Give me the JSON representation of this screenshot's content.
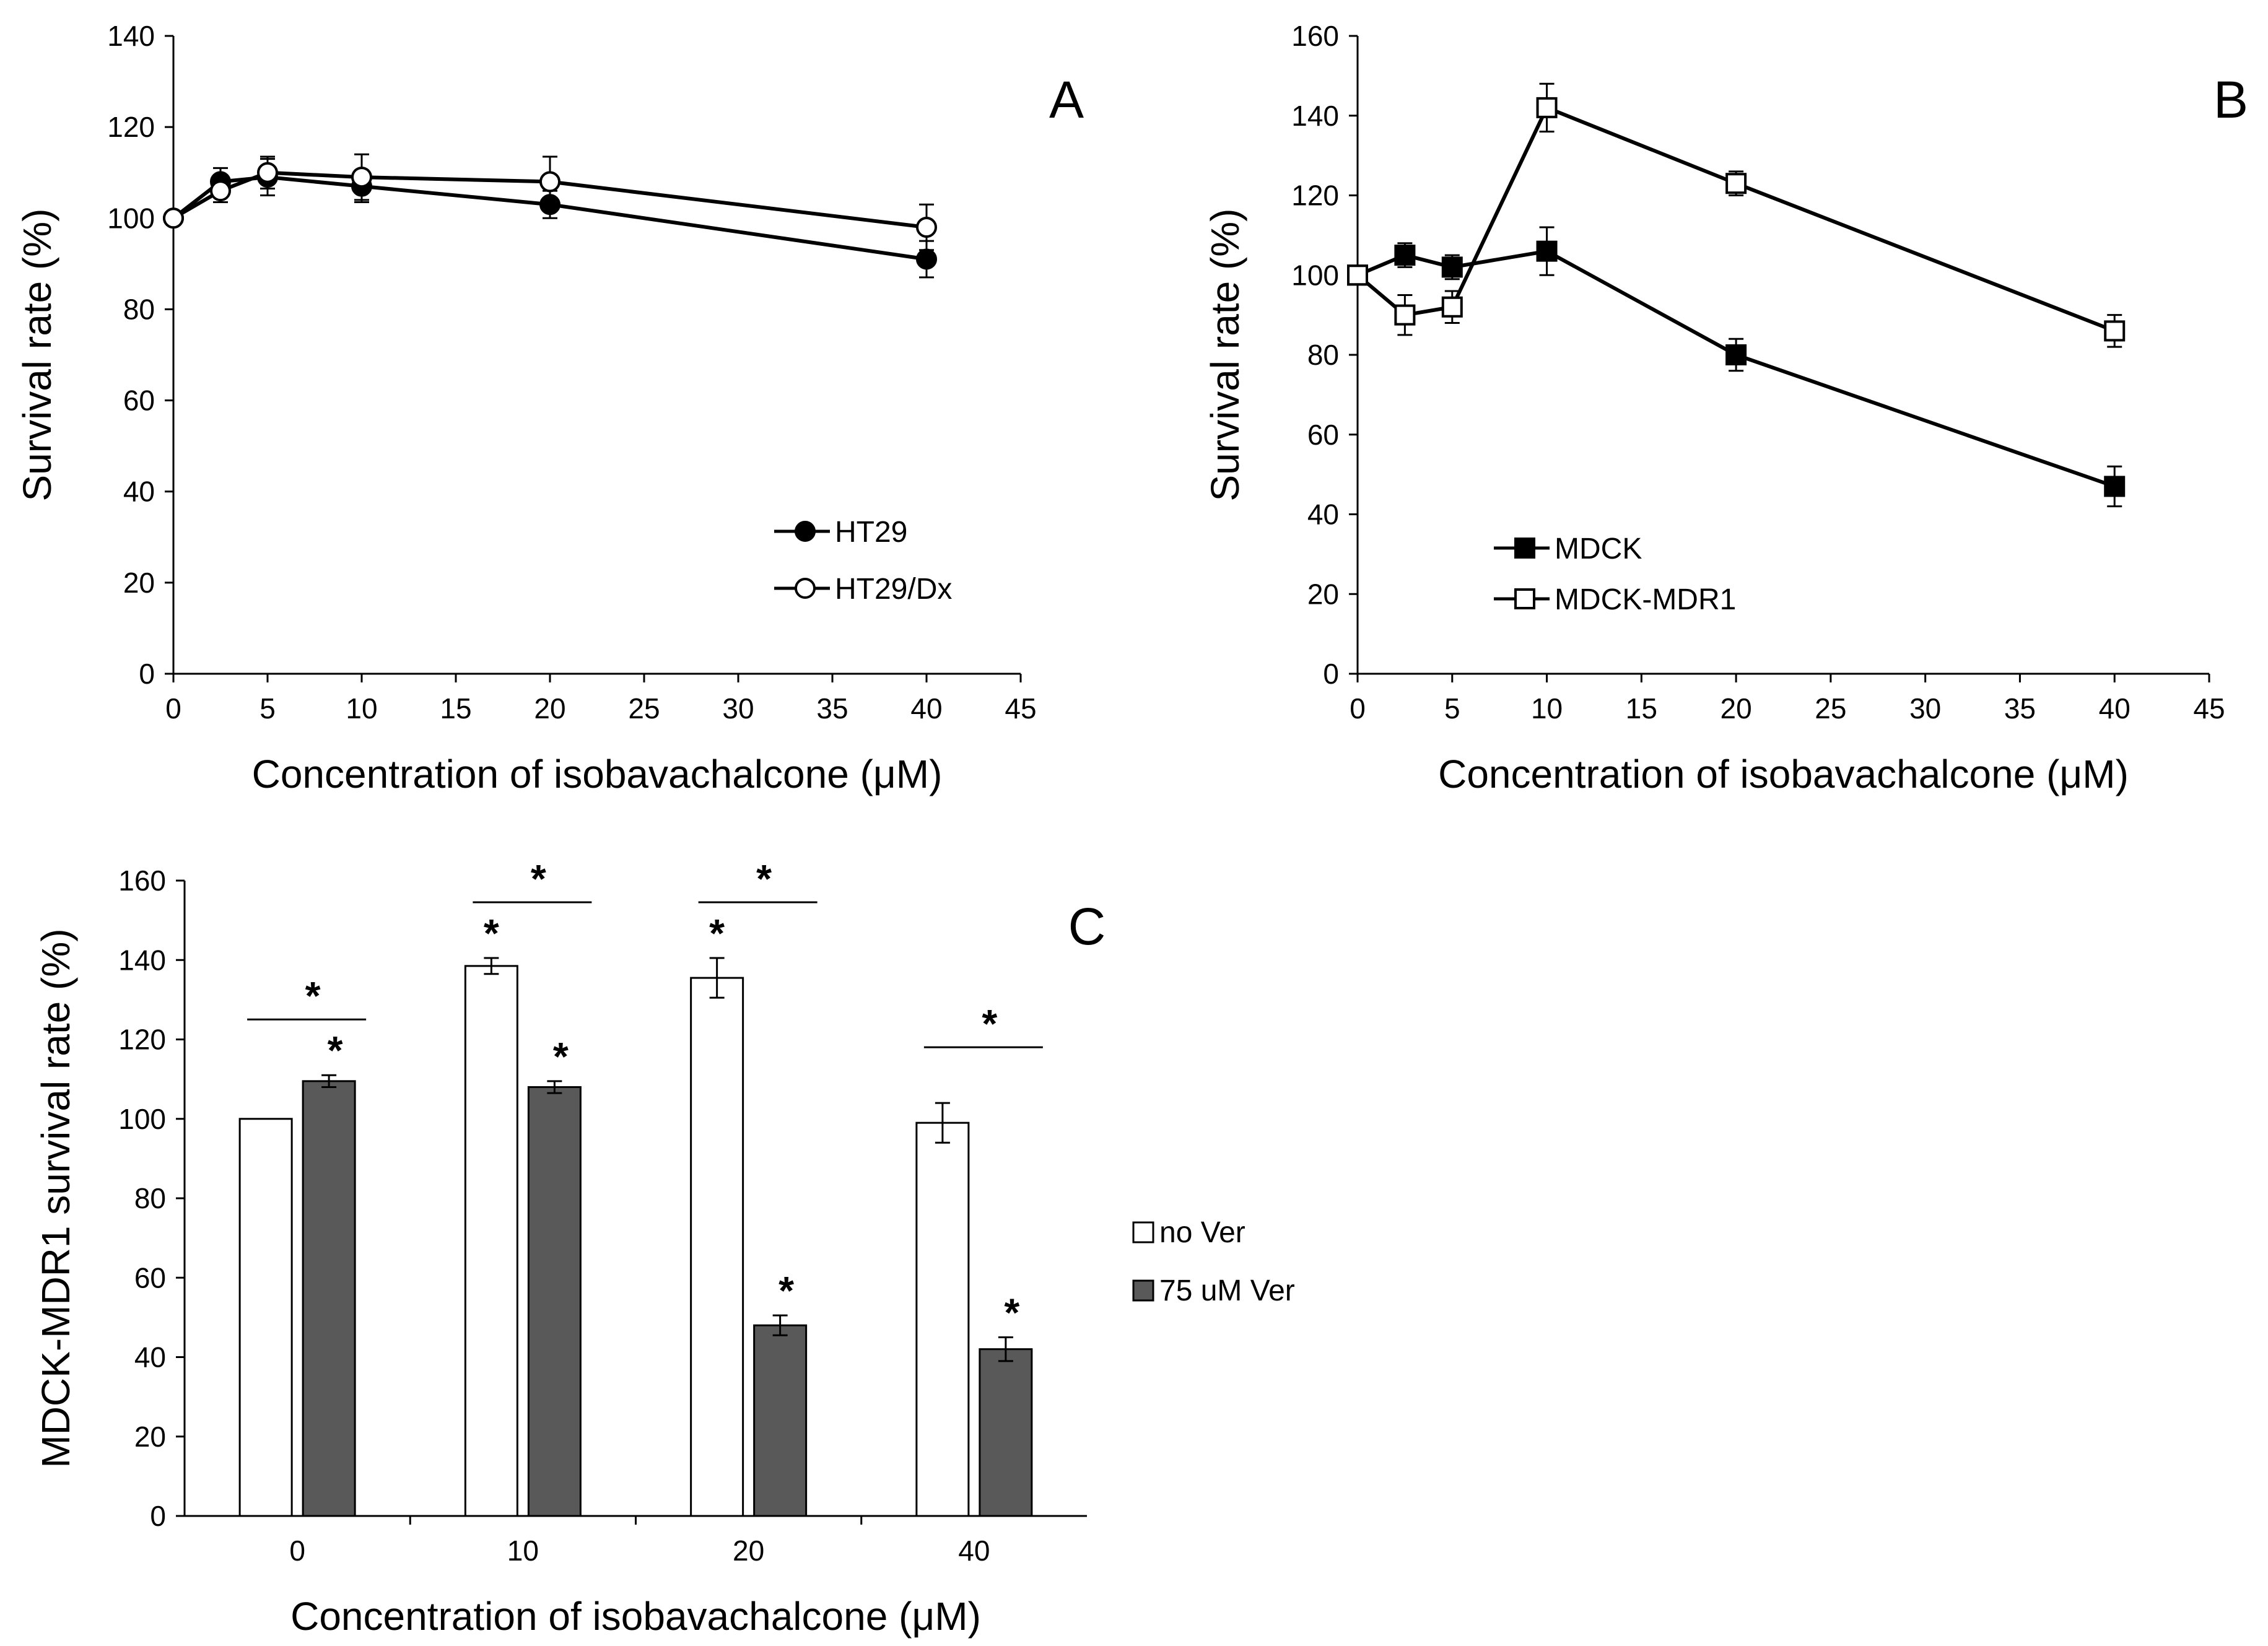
{
  "chart_data": [
    {
      "id": "A",
      "type": "line",
      "panel_label": "A",
      "xlabel": "Concentration of isobavachalcone (μM)",
      "ylabel": "Survival rate (%)",
      "xlim": [
        0,
        45
      ],
      "ylim": [
        0,
        140
      ],
      "xticks": [
        "0",
        "5",
        "10",
        "15",
        "20",
        "25",
        "30",
        "35",
        "40",
        "45"
      ],
      "yticks": [
        "0",
        "20",
        "40",
        "60",
        "80",
        "100",
        "120",
        "140"
      ],
      "legend_position": "lower-right",
      "series": [
        {
          "name": "HT29",
          "marker": "filled-circle",
          "x": [
            0,
            2.5,
            5,
            10,
            20,
            40
          ],
          "y": [
            100,
            108,
            109,
            107,
            103,
            91
          ],
          "err": [
            0,
            3,
            4,
            3.5,
            3,
            4
          ]
        },
        {
          "name": "HT29/Dx",
          "marker": "open-circle",
          "x": [
            0,
            2.5,
            5,
            10,
            20,
            40
          ],
          "y": [
            100,
            106,
            110,
            109,
            108,
            98
          ],
          "err": [
            0,
            2.5,
            3.5,
            5,
            5.5,
            5
          ]
        }
      ]
    },
    {
      "id": "B",
      "type": "line",
      "panel_label": "B",
      "xlabel": "Concentration of isobavachalcone (μM)",
      "ylabel": "Survival rate (%)",
      "xlim": [
        0,
        45
      ],
      "ylim": [
        0,
        160
      ],
      "xticks": [
        "0",
        "5",
        "10",
        "15",
        "20",
        "25",
        "30",
        "35",
        "40",
        "45"
      ],
      "yticks": [
        "0",
        "20",
        "40",
        "60",
        "80",
        "100",
        "120",
        "140",
        "160"
      ],
      "legend_position": "lower-left",
      "series": [
        {
          "name": "MDCK",
          "marker": "filled-square",
          "x": [
            0,
            2.5,
            5,
            10,
            20,
            40
          ],
          "y": [
            100,
            105,
            102,
            106,
            80,
            47
          ],
          "err": [
            0,
            3,
            3,
            6,
            4,
            5
          ]
        },
        {
          "name": "MDCK-MDR1",
          "marker": "open-square",
          "x": [
            0,
            2.5,
            5,
            10,
            20,
            40
          ],
          "y": [
            100,
            90,
            92,
            142,
            123,
            86
          ],
          "err": [
            0,
            5,
            4,
            6,
            3,
            4
          ]
        }
      ]
    },
    {
      "id": "C",
      "type": "bar",
      "panel_label": "C",
      "xlabel": "Concentration of isobavachalcone (μM)",
      "ylabel": "MDCK-MDR1  survival rate (%)",
      "ylim": [
        0,
        160
      ],
      "yticks": [
        "0",
        "20",
        "40",
        "60",
        "80",
        "100",
        "120",
        "140",
        "160"
      ],
      "categories": [
        "0",
        "10",
        "20",
        "40"
      ],
      "legend_position": "right",
      "series": [
        {
          "name": "no Ver",
          "color": "#ffffff",
          "values": [
            100,
            138.5,
            135.5,
            99
          ],
          "err": [
            0,
            2,
            5,
            5
          ],
          "significant": [
            false,
            true,
            true,
            false
          ]
        },
        {
          "name": "75 uM Ver",
          "color": "#595959",
          "values": [
            109.5,
            108,
            48,
            42
          ],
          "err": [
            1.5,
            1.5,
            2.5,
            3
          ],
          "significant": [
            true,
            true,
            true,
            true
          ]
        }
      ],
      "group_significance": [
        true,
        true,
        true,
        true
      ],
      "significance_marker": "*"
    }
  ]
}
